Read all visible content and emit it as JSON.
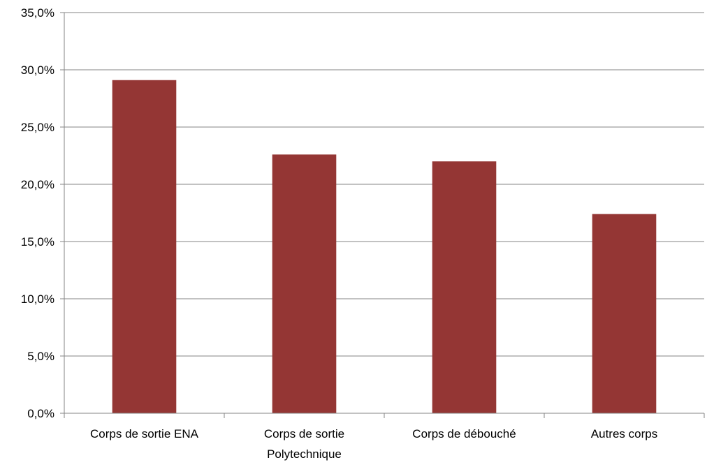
{
  "chart_data": {
    "type": "bar",
    "categories": [
      "Corps de sortie ENA",
      "Corps de sortie Polytechnique",
      "Corps de débouché",
      "Autres corps"
    ],
    "category_label_lines": [
      [
        "Corps de sortie ENA"
      ],
      [
        "Corps de sortie",
        "Polytechnique"
      ],
      [
        "Corps de débouché"
      ],
      [
        "Autres corps"
      ]
    ],
    "values": [
      29.1,
      22.6,
      22.0,
      17.4
    ],
    "ylim": [
      0,
      35
    ],
    "yticks": [
      0,
      5,
      10,
      15,
      20,
      25,
      30,
      35
    ],
    "ytick_labels": [
      "0,0%",
      "5,0%",
      "10,0%",
      "15,0%",
      "20,0%",
      "25,0%",
      "30,0%",
      "35,0%"
    ],
    "grid": true,
    "legend": "none",
    "colors": {
      "bar": "#943634",
      "grid": "#868686",
      "axis": "#868686",
      "text": "#000000"
    }
  }
}
